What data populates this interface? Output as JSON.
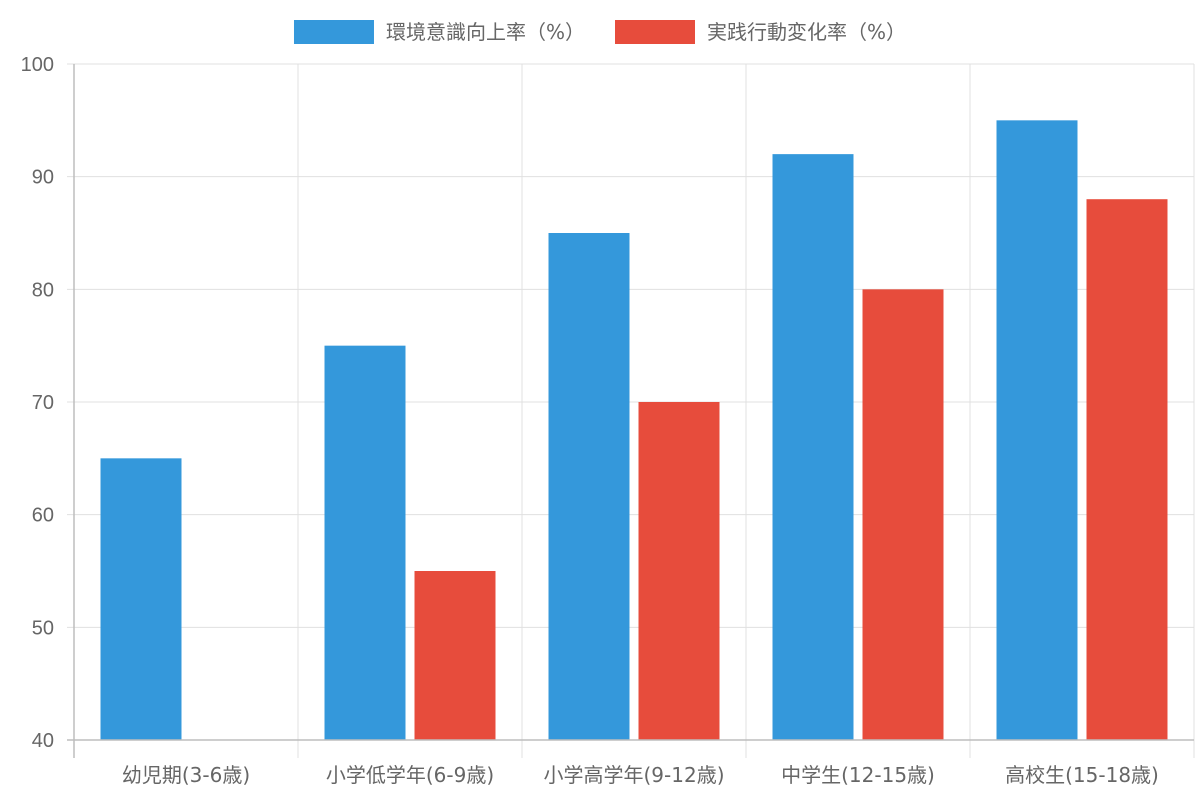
{
  "chart_data": {
    "type": "bar",
    "title": "",
    "xlabel": "",
    "ylabel": "",
    "categories": [
      "幼児期(3-6歳)",
      "小学低学年(6-9歳)",
      "小学高学年(9-12歳)",
      "中学生(12-15歳)",
      "高校生(15-18歳)"
    ],
    "series": [
      {
        "name": "環境意識向上率（%）",
        "color": "#3498db",
        "values": [
          65,
          75,
          85,
          92,
          95
        ]
      },
      {
        "name": "実践行動変化率（%）",
        "color": "#e74c3c",
        "values": [
          40,
          55,
          70,
          80,
          88
        ]
      }
    ],
    "ylim": [
      40,
      100
    ],
    "yticks": [
      40,
      50,
      60,
      70,
      80,
      90,
      100
    ],
    "grid": true,
    "legend_position": "top-center",
    "colors": {
      "grid": "#e0e0e0",
      "axis": "#bdbdbd",
      "text": "#666666"
    }
  }
}
